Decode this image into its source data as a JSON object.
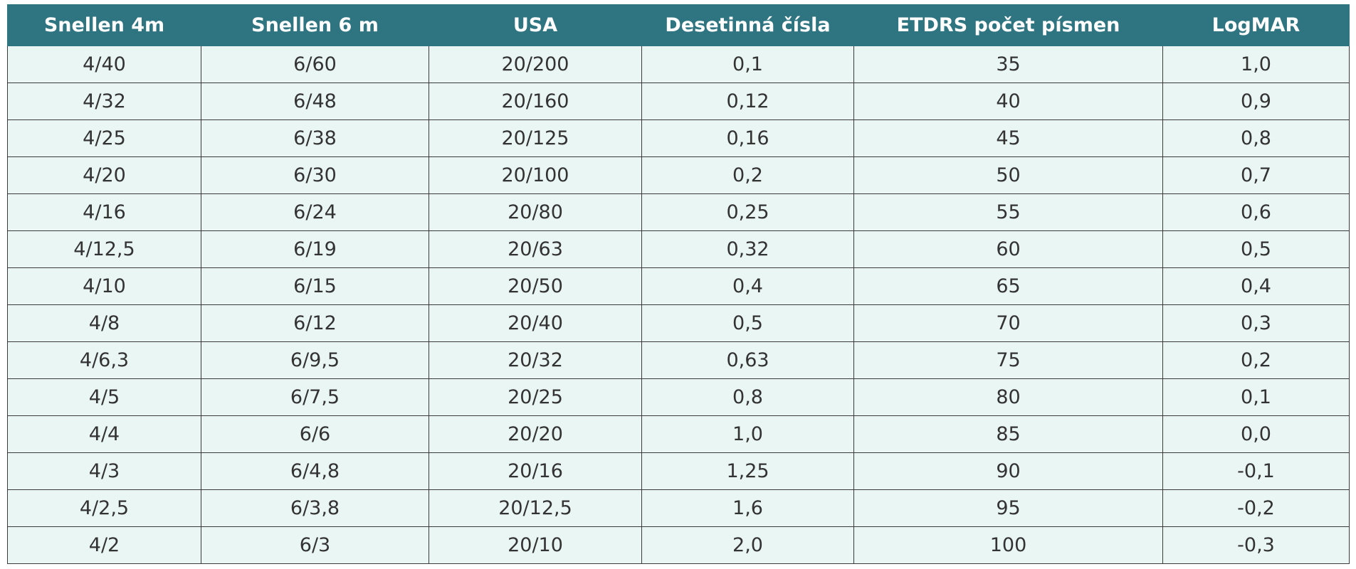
{
  "table": {
    "header": [
      "Snellen 4m",
      "Snellen 6 m",
      "USA",
      "Desetinná čísla",
      "ETDRS počet písmen",
      "LogMAR"
    ],
    "rows": [
      [
        "4/40",
        "6/60",
        "20/200",
        "0,1",
        "35",
        "1,0"
      ],
      [
        "4/32",
        "6/48",
        "20/160",
        "0,12",
        "40",
        "0,9"
      ],
      [
        "4/25",
        "6/38",
        "20/125",
        "0,16",
        "45",
        "0,8"
      ],
      [
        "4/20",
        "6/30",
        "20/100",
        "0,2",
        "50",
        "0,7"
      ],
      [
        "4/16",
        "6/24",
        "20/80",
        "0,25",
        "55",
        "0,6"
      ],
      [
        "4/12,5",
        "6/19",
        "20/63",
        "0,32",
        "60",
        "0,5"
      ],
      [
        "4/10",
        "6/15",
        "20/50",
        "0,4",
        "65",
        "0,4"
      ],
      [
        "4/8",
        "6/12",
        "20/40",
        "0,5",
        "70",
        "0,3"
      ],
      [
        "4/6,3",
        "6/9,5",
        "20/32",
        "0,63",
        "75",
        "0,2"
      ],
      [
        "4/5",
        "6/7,5",
        "20/25",
        "0,8",
        "80",
        "0,1"
      ],
      [
        "4/4",
        "6/6",
        "20/20",
        "1,0",
        "85",
        "0,0"
      ],
      [
        "4/3",
        "6/4,8",
        "20/16",
        "1,25",
        "90",
        "-0,1"
      ],
      [
        "4/2,5",
        "6/3,8",
        "20/12,5",
        "1,6",
        "95",
        "-0,2"
      ],
      [
        "4/2",
        "6/3",
        "20/10",
        "2,0",
        "100",
        "-0,3"
      ]
    ]
  }
}
